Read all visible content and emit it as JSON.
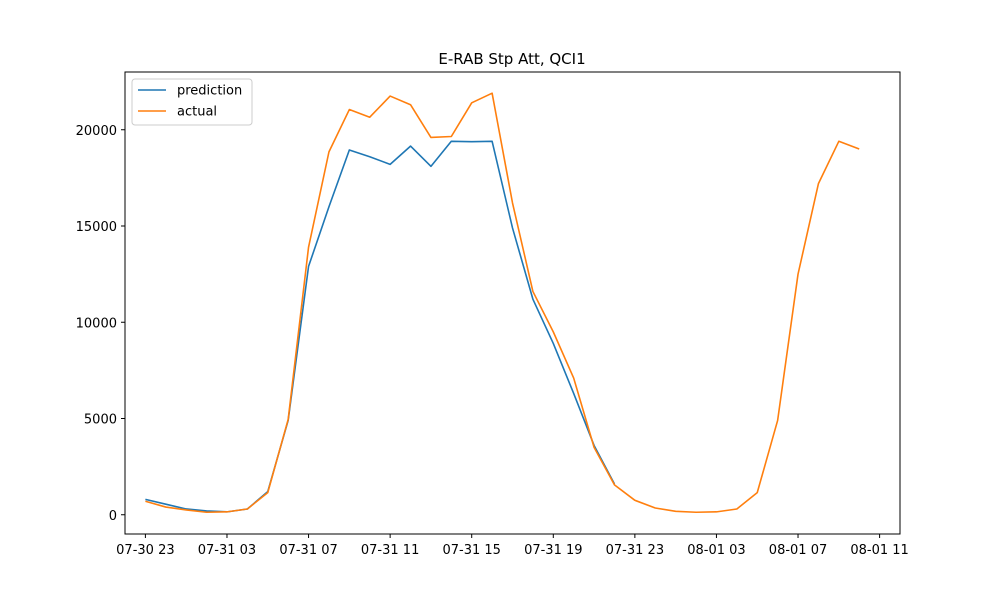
{
  "chart_data": {
    "type": "line",
    "title": "E-RAB Stp Att, QCI1",
    "xlabel": "",
    "ylabel": "",
    "x_start": "07-30 23",
    "x_step": "1 hour",
    "x_ticks": [
      "07-30 23",
      "07-31 03",
      "07-31 07",
      "07-31 11",
      "07-31 15",
      "07-31 19",
      "07-31 23",
      "08-01 03",
      "08-01 07",
      "08-01 11"
    ],
    "y_ticks": [
      0,
      5000,
      10000,
      15000,
      20000
    ],
    "xlim": [
      "07-30 23",
      "08-01 11"
    ],
    "ylim": [
      -1000,
      23000
    ],
    "grid": false,
    "legend_position": "upper-left",
    "series": [
      {
        "name": "prediction",
        "color": "#1f77b4",
        "values": [
          800,
          550,
          300,
          200,
          150,
          300,
          1200,
          4900,
          12900,
          16000,
          18950,
          18600,
          18200,
          19150,
          18100,
          19400,
          19380,
          19400,
          14900,
          11200,
          8900,
          6300,
          3600,
          1600
        ]
      },
      {
        "name": "actual",
        "color": "#ff7f0e",
        "values": [
          700,
          400,
          250,
          130,
          150,
          300,
          1150,
          4950,
          13900,
          18850,
          21050,
          20650,
          21750,
          21300,
          19600,
          19650,
          21400,
          21900,
          16200,
          11600,
          9500,
          7100,
          3500,
          1550,
          750,
          350,
          180,
          130,
          150,
          300,
          1150,
          4900,
          12500,
          17200,
          19400,
          19000
        ]
      }
    ]
  }
}
